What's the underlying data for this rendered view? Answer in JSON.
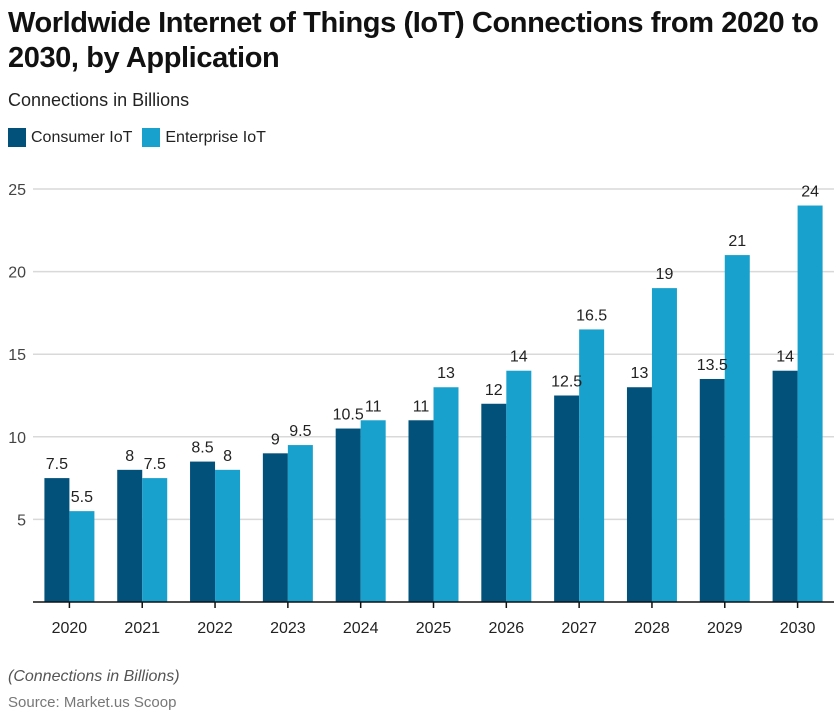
{
  "title": "Worldwide Internet of Things (IoT) Connections from 2020 to 2030, by Application",
  "subtitle": "Connections in Billions",
  "footer": {
    "note": "(Connections in Billions)",
    "source": "Source: Market.us Scoop"
  },
  "colors": {
    "consumer": "#02517A",
    "enterprise": "#19A1CD",
    "grid": "#D9D9D9",
    "axis": "#111111"
  },
  "chart_data": {
    "type": "bar",
    "title": "Worldwide Internet of Things (IoT) Connections from 2020 to 2030, by Application",
    "subtitle": "Connections in Billions",
    "xlabel": "",
    "ylabel": "",
    "categories": [
      "2020",
      "2021",
      "2022",
      "2023",
      "2024",
      "2025",
      "2026",
      "2027",
      "2028",
      "2029",
      "2030"
    ],
    "series": [
      {
        "name": "Consumer IoT",
        "values": [
          7.5,
          8,
          8.5,
          9,
          10.5,
          11,
          12,
          12.5,
          13,
          13.5,
          14
        ]
      },
      {
        "name": "Enterprise IoT",
        "values": [
          5.5,
          7.5,
          8,
          9.5,
          11,
          13,
          14,
          16.5,
          19,
          21,
          24
        ]
      }
    ],
    "labels": [
      [
        "7.5",
        "8",
        "8.5",
        "9",
        "10.5",
        "11",
        "12",
        "12.5",
        "13",
        "13.5",
        "14"
      ],
      [
        "5.5",
        "7.5",
        "8",
        "9.5",
        "11",
        "13",
        "14",
        "16.5",
        "19",
        "21",
        "24"
      ]
    ],
    "ylim": [
      0,
      25
    ],
    "yticks": [
      5,
      10,
      15,
      20,
      25
    ],
    "grid": true,
    "legend": "top-left"
  }
}
